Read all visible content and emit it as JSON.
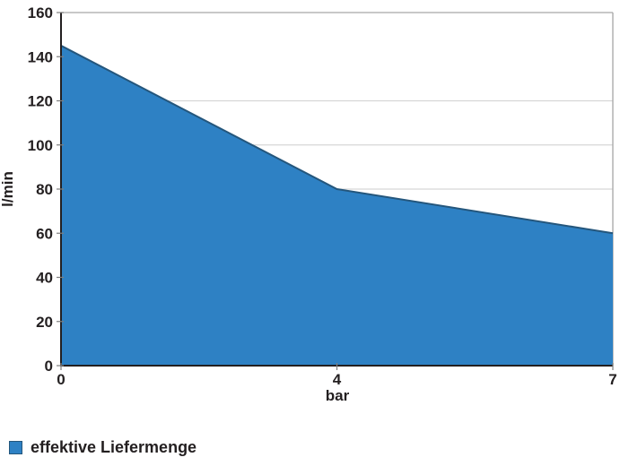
{
  "chart": {
    "y_axis_title": "l/min",
    "x_axis_title": "bar",
    "legend": {
      "label": "effektive Liefermenge"
    }
  },
  "chart_data": {
    "type": "area",
    "x": [
      0,
      4,
      7
    ],
    "x_tick_labels": [
      "0",
      "4",
      "7"
    ],
    "x_axis_type": "category-equal-spacing",
    "series": [
      {
        "name": "effektive Liefermenge",
        "values": [
          145,
          80,
          60
        ]
      }
    ],
    "title": "",
    "xlabel": "bar",
    "ylabel": "l/min",
    "ylim": [
      0,
      160
    ],
    "y_ticks": [
      0,
      20,
      40,
      60,
      80,
      100,
      120,
      140,
      160
    ],
    "visible_gridlines": [
      80,
      100,
      120
    ],
    "grid": "horizontal-partial",
    "legend_position": "bottom-left",
    "colors": {
      "area_fill": "#2E81C4",
      "area_line": "#24567C",
      "gridline": "#D6D6D6",
      "axis_dark": "#231F20",
      "border_gray": "#A6A6A6",
      "text": "#231F20"
    }
  }
}
